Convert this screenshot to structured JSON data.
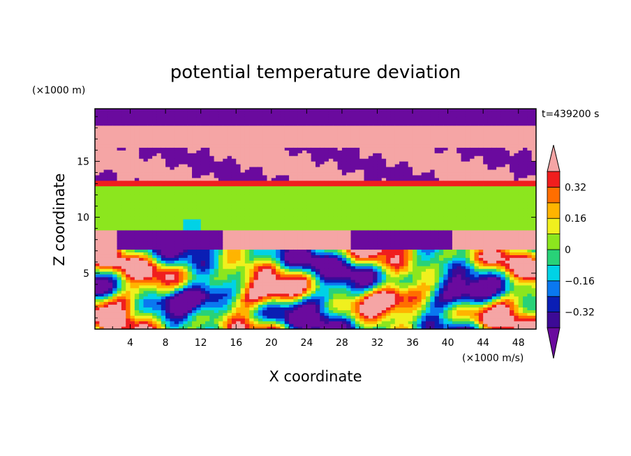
{
  "chart_data": {
    "type": "heatmap",
    "title": "potential temperature deviation",
    "xlabel": "X coordinate",
    "ylabel": "Z coordinate",
    "x_unit": "(×1000 m/s)",
    "y_unit": "(×1000 m)",
    "time_label": "t=439200 s",
    "xlim": [
      0,
      50
    ],
    "ylim": [
      0,
      19.7
    ],
    "x_ticks": [
      4,
      8,
      12,
      16,
      20,
      24,
      28,
      32,
      36,
      40,
      44,
      48
    ],
    "y_ticks": [
      5,
      10,
      15
    ],
    "colorbar": {
      "levels": [
        -0.4,
        -0.32,
        -0.24,
        -0.16,
        -0.08,
        0,
        0.08,
        0.16,
        0.24,
        0.32,
        0.4
      ],
      "tick_labels": [
        "−0.32",
        "−0.16",
        "0",
        "0.16",
        "0.32"
      ],
      "tick_values": [
        -0.32,
        -0.16,
        0,
        0.16,
        0.32
      ],
      "colors": [
        "#6a0a9e",
        "#3c0a96",
        "#0a1eb4",
        "#0a78f0",
        "#00d2e6",
        "#28d278",
        "#8ce61e",
        "#f0f01e",
        "#ffb400",
        "#ff6e00",
        "#f01e1e",
        "#f5a5a5"
      ],
      "extend": "both"
    },
    "field_description_layers": [
      {
        "z_range": [
          18.3,
          19.7
        ],
        "level": "below -0.4"
      },
      {
        "z_range": [
          16.2,
          18.3
        ],
        "level": "above 0.4"
      },
      {
        "z_range": [
          13.2,
          16.2
        ],
        "level": "mixed above 0.4 / below -0.4"
      },
      {
        "z_range": [
          8.8,
          13.2
        ],
        "level": "0 to 0.08"
      },
      {
        "z_range": [
          7.2,
          8.8
        ],
        "level": "mixed above 0.4 / below -0.4"
      },
      {
        "z_range": [
          0,
          7.2
        ],
        "level": "turbulent, full range"
      }
    ]
  }
}
